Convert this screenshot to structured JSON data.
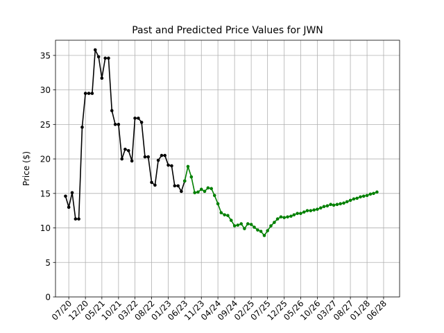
{
  "chart_data": {
    "type": "line",
    "title": "Past and Predicted Price Values for JWN",
    "xlabel": "",
    "ylabel": "Price ($)",
    "ylim": [
      0,
      37.2
    ],
    "xlim": [
      "2020-03-01",
      "2028-10-26"
    ],
    "yticks": [
      0,
      5,
      10,
      15,
      20,
      25,
      30,
      35
    ],
    "xticks": [
      {
        "label": "07/20",
        "date": "2020-07-01"
      },
      {
        "label": "12/20",
        "date": "2020-12-01"
      },
      {
        "label": "05/21",
        "date": "2021-05-01"
      },
      {
        "label": "10/21",
        "date": "2021-10-01"
      },
      {
        "label": "03/22",
        "date": "2022-03-01"
      },
      {
        "label": "08/22",
        "date": "2022-08-01"
      },
      {
        "label": "01/23",
        "date": "2023-01-01"
      },
      {
        "label": "06/23",
        "date": "2023-06-01"
      },
      {
        "label": "11/23",
        "date": "2023-11-01"
      },
      {
        "label": "04/24",
        "date": "2024-04-01"
      },
      {
        "label": "09/24",
        "date": "2024-09-01"
      },
      {
        "label": "02/25",
        "date": "2025-02-01"
      },
      {
        "label": "07/25",
        "date": "2025-07-01"
      },
      {
        "label": "12/25",
        "date": "2025-12-01"
      },
      {
        "label": "05/26",
        "date": "2026-05-01"
      },
      {
        "label": "10/26",
        "date": "2026-10-01"
      },
      {
        "label": "03/27",
        "date": "2027-03-01"
      },
      {
        "label": "08/27",
        "date": "2027-08-01"
      },
      {
        "label": "01/28",
        "date": "2028-01-01"
      },
      {
        "label": "06/28",
        "date": "2028-06-01"
      }
    ],
    "grid": true,
    "series": [
      {
        "color": "#000000",
        "points": [
          [
            "2020-06-01",
            14.6
          ],
          [
            "2020-07-01",
            13.0
          ],
          [
            "2020-08-01",
            15.1
          ],
          [
            "2020-09-01",
            11.3
          ],
          [
            "2020-10-01",
            11.3
          ],
          [
            "2020-11-01",
            24.6
          ],
          [
            "2020-12-01",
            29.5
          ],
          [
            "2021-01-01",
            29.5
          ],
          [
            "2021-02-01",
            29.5
          ],
          [
            "2021-03-01",
            35.8
          ],
          [
            "2021-04-01",
            34.8
          ],
          [
            "2021-05-01",
            31.7
          ],
          [
            "2021-06-01",
            34.6
          ],
          [
            "2021-07-01",
            34.6
          ],
          [
            "2021-08-01",
            27.0
          ],
          [
            "2021-09-01",
            25.0
          ],
          [
            "2021-10-01",
            25.0
          ],
          [
            "2021-11-01",
            20.0
          ],
          [
            "2021-12-01",
            21.4
          ],
          [
            "2022-01-01",
            21.2
          ],
          [
            "2022-02-01",
            19.7
          ],
          [
            "2022-03-01",
            25.9
          ],
          [
            "2022-04-01",
            25.9
          ],
          [
            "2022-05-01",
            25.3
          ],
          [
            "2022-06-01",
            20.3
          ],
          [
            "2022-07-01",
            20.3
          ],
          [
            "2022-08-01",
            16.6
          ],
          [
            "2022-09-01",
            16.2
          ],
          [
            "2022-10-01",
            19.8
          ],
          [
            "2022-11-01",
            20.5
          ],
          [
            "2022-12-01",
            20.5
          ],
          [
            "2023-01-01",
            19.1
          ],
          [
            "2023-02-01",
            19.0
          ],
          [
            "2023-03-01",
            16.1
          ],
          [
            "2023-04-01",
            16.1
          ],
          [
            "2023-05-01",
            15.3
          ],
          [
            "2023-06-01",
            16.8
          ]
        ]
      },
      {
        "color": "#008000",
        "points": [
          [
            "2023-06-01",
            16.8
          ],
          [
            "2023-07-01",
            18.9
          ],
          [
            "2023-08-01",
            17.4
          ],
          [
            "2023-09-01",
            15.1
          ],
          [
            "2023-10-01",
            15.2
          ],
          [
            "2023-11-01",
            15.6
          ],
          [
            "2023-12-01",
            15.3
          ],
          [
            "2024-01-01",
            15.8
          ],
          [
            "2024-02-01",
            15.7
          ],
          [
            "2024-03-01",
            14.7
          ],
          [
            "2024-04-01",
            13.5
          ],
          [
            "2024-05-01",
            12.2
          ],
          [
            "2024-06-01",
            11.9
          ],
          [
            "2024-07-01",
            11.8
          ],
          [
            "2024-08-01",
            11.1
          ],
          [
            "2024-09-01",
            10.3
          ],
          [
            "2024-10-01",
            10.4
          ],
          [
            "2024-11-01",
            10.6
          ],
          [
            "2024-12-01",
            9.9
          ],
          [
            "2025-01-01",
            10.6
          ],
          [
            "2025-02-01",
            10.5
          ],
          [
            "2025-03-01",
            10.1
          ],
          [
            "2025-04-01",
            9.7
          ],
          [
            "2025-05-01",
            9.5
          ],
          [
            "2025-06-01",
            8.9
          ],
          [
            "2025-07-01",
            9.6
          ],
          [
            "2025-08-01",
            10.3
          ],
          [
            "2025-09-01",
            10.8
          ],
          [
            "2025-10-01",
            11.3
          ],
          [
            "2025-11-01",
            11.6
          ],
          [
            "2025-12-01",
            11.5
          ],
          [
            "2026-01-01",
            11.6
          ],
          [
            "2026-02-01",
            11.7
          ],
          [
            "2026-03-01",
            11.9
          ],
          [
            "2026-04-01",
            12.1
          ],
          [
            "2026-05-01",
            12.1
          ],
          [
            "2026-06-01",
            12.3
          ],
          [
            "2026-07-01",
            12.5
          ],
          [
            "2026-08-01",
            12.5
          ],
          [
            "2026-09-01",
            12.6
          ],
          [
            "2026-10-01",
            12.7
          ],
          [
            "2026-11-01",
            12.9
          ],
          [
            "2026-12-01",
            13.1
          ],
          [
            "2027-01-01",
            13.2
          ],
          [
            "2027-02-01",
            13.4
          ],
          [
            "2027-03-01",
            13.3
          ],
          [
            "2027-04-01",
            13.4
          ],
          [
            "2027-05-01",
            13.5
          ],
          [
            "2027-06-01",
            13.6
          ],
          [
            "2027-07-01",
            13.8
          ],
          [
            "2027-08-01",
            14.0
          ],
          [
            "2027-09-01",
            14.2
          ],
          [
            "2027-10-01",
            14.3
          ],
          [
            "2027-11-01",
            14.5
          ],
          [
            "2027-12-01",
            14.6
          ],
          [
            "2028-01-01",
            14.7
          ],
          [
            "2028-02-01",
            14.9
          ],
          [
            "2028-03-01",
            15.0
          ],
          [
            "2028-04-01",
            15.2
          ]
        ]
      }
    ]
  }
}
